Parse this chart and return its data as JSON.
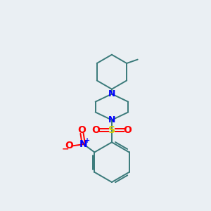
{
  "background_color": "#eaeff3",
  "bond_color": "#3a7a7a",
  "N_color": "#0000ff",
  "S_color": "#cccc00",
  "O_color": "#ff0000",
  "figsize": [
    3.0,
    3.0
  ],
  "dpi": 100,
  "lw": 1.4,
  "xlim": [
    0,
    10
  ],
  "ylim": [
    0,
    10
  ]
}
